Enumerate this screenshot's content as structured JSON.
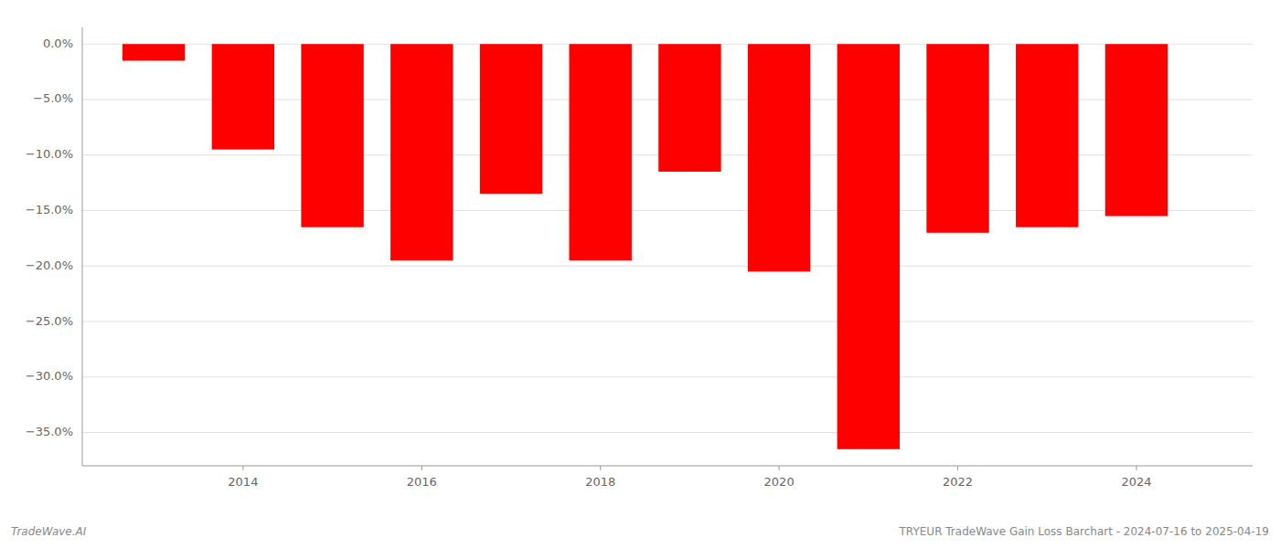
{
  "chart_data": {
    "type": "bar",
    "x": [
      2013,
      2014,
      2015,
      2016,
      2017,
      2018,
      2019,
      2020,
      2021,
      2022,
      2023,
      2024
    ],
    "values": [
      -1.5,
      -9.5,
      -16.5,
      -19.5,
      -13.5,
      -19.5,
      -11.5,
      -20.5,
      -36.5,
      -17.0,
      -16.5,
      -15.5
    ],
    "color": "#ff0000",
    "xlim": [
      2012.2,
      2025.3
    ],
    "xticks": [
      2014,
      2016,
      2018,
      2020,
      2022,
      2024
    ],
    "ylim": [
      -38,
      1.5
    ],
    "yticks": [
      {
        "value": 0.0,
        "label": "0.0%"
      },
      {
        "value": -5.0,
        "label": "−5.0%"
      },
      {
        "value": -10.0,
        "label": "−10.0%"
      },
      {
        "value": -15.0,
        "label": "−15.0%"
      },
      {
        "value": -20.0,
        "label": "−20.0%"
      },
      {
        "value": -25.0,
        "label": "−25.0%"
      },
      {
        "value": -30.0,
        "label": "−30.0%"
      },
      {
        "value": -35.0,
        "label": "−35.0%"
      }
    ],
    "grid": true,
    "annotations": [
      "TradeWave.AI",
      "TRYEUR TradeWave Gain Loss Barchart - 2024-07-16 to 2025-04-19"
    ]
  }
}
